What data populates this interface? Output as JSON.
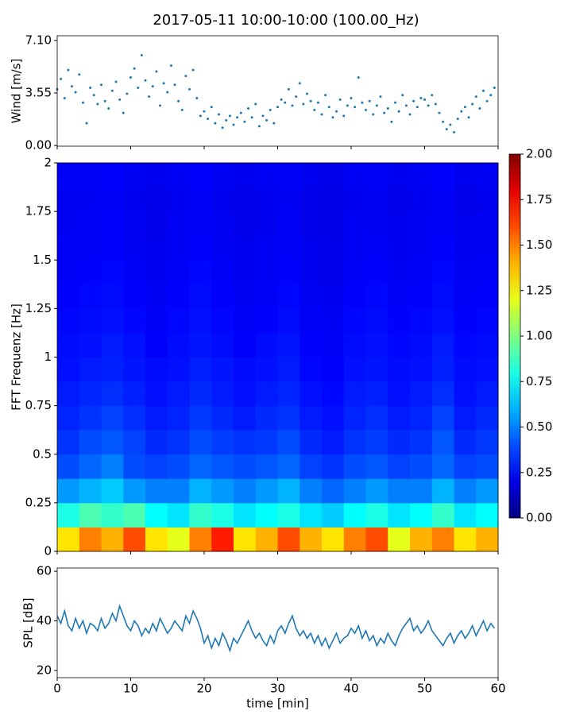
{
  "chart_data": [
    {
      "type": "scatter",
      "title": "2017-05-11 10:00-10:00 (100.00_Hz)",
      "ylabel": "Wind [m/s]",
      "color": "#1f77b4",
      "x": [
        0,
        0.5,
        1,
        1.5,
        2,
        2.5,
        3,
        3.5,
        4,
        4.5,
        5,
        5.5,
        6,
        6.5,
        7,
        7.5,
        8,
        8.5,
        9,
        9.5,
        10,
        10.5,
        11,
        11.5,
        12,
        12.5,
        13,
        13.5,
        14,
        14.5,
        15,
        15.5,
        16,
        16.5,
        17,
        17.5,
        18,
        18.5,
        19,
        19.5,
        20,
        20.5,
        21,
        21.5,
        22,
        22.5,
        23,
        23.5,
        24,
        24.5,
        25,
        25.5,
        26,
        26.5,
        27,
        27.5,
        28,
        28.5,
        29,
        29.5,
        30,
        30.5,
        31,
        31.5,
        32,
        32.5,
        33,
        33.5,
        34,
        34.5,
        35,
        35.5,
        36,
        36.5,
        37,
        37.5,
        38,
        38.5,
        39,
        39.5,
        40,
        40.5,
        41,
        41.5,
        42,
        42.5,
        43,
        43.5,
        44,
        44.5,
        45,
        45.5,
        46,
        46.5,
        47,
        47.5,
        48,
        48.5,
        49,
        49.5,
        50,
        50.5,
        51,
        51.5,
        52,
        52.5,
        53,
        53.5,
        54,
        54.5,
        55,
        55.5,
        56,
        56.5,
        57,
        57.5,
        58,
        58.5,
        59,
        59.5
      ],
      "values": [
        3.8,
        4.5,
        3.2,
        5.1,
        4.0,
        3.6,
        4.8,
        2.9,
        1.5,
        3.9,
        3.4,
        2.8,
        4.1,
        3.0,
        2.5,
        3.7,
        4.3,
        3.1,
        2.2,
        3.5,
        4.6,
        5.2,
        3.9,
        6.1,
        4.4,
        3.3,
        4.0,
        5.0,
        2.7,
        4.2,
        3.6,
        5.4,
        4.1,
        3.0,
        2.4,
        4.7,
        3.8,
        5.1,
        3.2,
        2.0,
        2.3,
        1.8,
        2.6,
        1.5,
        2.1,
        1.2,
        1.7,
        2.0,
        1.4,
        1.9,
        2.2,
        1.6,
        2.5,
        1.9,
        2.8,
        1.3,
        2.0,
        1.7,
        2.4,
        1.5,
        2.6,
        3.1,
        2.9,
        3.8,
        2.7,
        3.3,
        4.2,
        2.8,
        3.5,
        3.0,
        2.4,
        2.9,
        2.1,
        3.4,
        2.6,
        1.9,
        2.3,
        3.1,
        2.0,
        2.7,
        3.2,
        2.6,
        4.6,
        2.9,
        2.4,
        3.0,
        2.1,
        2.7,
        3.3,
        2.2,
        2.5,
        1.6,
        2.9,
        2.3,
        3.4,
        2.7,
        2.1,
        3.0,
        2.6,
        3.2,
        3.1,
        2.7,
        3.4,
        2.8,
        2.2,
        1.6,
        1.1,
        1.4,
        0.9,
        1.8,
        2.3,
        2.6,
        1.9,
        2.8,
        3.3,
        2.5,
        3.7,
        3.0,
        3.4,
        3.9
      ],
      "xlim": [
        0,
        60
      ],
      "xticks": [
        0,
        10,
        20,
        30,
        40,
        50,
        60
      ],
      "show_xtick_labels": false,
      "ylim": [
        -0.05,
        7.42
      ],
      "yticks": [
        {
          "value": 0,
          "label": "0.00"
        },
        {
          "value": 3.55,
          "label": "3.55"
        },
        {
          "value": 7.1,
          "label": "7.10"
        }
      ]
    },
    {
      "type": "heatmap",
      "ylabel": "FFT Frequenz [Hz]",
      "colormap": "jet",
      "xlim": [
        0,
        60
      ],
      "xticks": [
        0,
        10,
        20,
        30,
        40,
        50,
        60
      ],
      "show_xtick_labels": false,
      "ylim": [
        0,
        2
      ],
      "yticks": [
        0,
        0.25,
        0.5,
        0.75,
        1,
        1.25,
        1.5,
        1.75,
        2
      ],
      "z": [
        [
          1.3,
          1.5,
          1.4,
          1.6,
          1.3,
          1.2,
          1.5,
          1.7,
          1.3,
          1.4,
          1.6,
          1.4,
          1.3,
          1.5,
          1.6,
          1.2,
          1.4,
          1.5,
          1.3,
          1.4
        ],
        [
          0.8,
          0.9,
          0.85,
          0.9,
          0.75,
          0.7,
          0.85,
          0.8,
          0.7,
          0.75,
          0.8,
          0.7,
          0.65,
          0.75,
          0.8,
          0.7,
          0.75,
          0.85,
          0.7,
          0.75
        ],
        [
          0.55,
          0.6,
          0.65,
          0.55,
          0.5,
          0.5,
          0.6,
          0.55,
          0.5,
          0.55,
          0.6,
          0.5,
          0.45,
          0.5,
          0.55,
          0.5,
          0.5,
          0.6,
          0.5,
          0.55
        ],
        [
          0.4,
          0.45,
          0.5,
          0.4,
          0.38,
          0.4,
          0.45,
          0.42,
          0.4,
          0.42,
          0.45,
          0.38,
          0.35,
          0.4,
          0.42,
          0.38,
          0.4,
          0.45,
          0.38,
          0.4
        ],
        [
          0.35,
          0.4,
          0.42,
          0.38,
          0.33,
          0.35,
          0.4,
          0.37,
          0.35,
          0.36,
          0.4,
          0.33,
          0.3,
          0.35,
          0.37,
          0.33,
          0.35,
          0.42,
          0.33,
          0.36
        ],
        [
          0.32,
          0.35,
          0.38,
          0.34,
          0.3,
          0.32,
          0.36,
          0.33,
          0.3,
          0.33,
          0.35,
          0.3,
          0.28,
          0.32,
          0.34,
          0.3,
          0.32,
          0.38,
          0.3,
          0.33
        ],
        [
          0.3,
          0.32,
          0.34,
          0.31,
          0.28,
          0.3,
          0.33,
          0.3,
          0.28,
          0.3,
          0.32,
          0.28,
          0.26,
          0.3,
          0.31,
          0.28,
          0.3,
          0.34,
          0.28,
          0.3
        ],
        [
          0.28,
          0.3,
          0.31,
          0.29,
          0.27,
          0.28,
          0.31,
          0.29,
          0.27,
          0.28,
          0.3,
          0.26,
          0.25,
          0.28,
          0.29,
          0.27,
          0.28,
          0.31,
          0.27,
          0.28
        ],
        [
          0.27,
          0.28,
          0.3,
          0.28,
          0.25,
          0.27,
          0.29,
          0.27,
          0.25,
          0.27,
          0.29,
          0.25,
          0.24,
          0.27,
          0.28,
          0.26,
          0.27,
          0.3,
          0.26,
          0.27
        ],
        [
          0.26,
          0.27,
          0.28,
          0.26,
          0.24,
          0.26,
          0.28,
          0.26,
          0.24,
          0.25,
          0.27,
          0.24,
          0.23,
          0.26,
          0.27,
          0.25,
          0.26,
          0.28,
          0.25,
          0.26
        ],
        [
          0.25,
          0.26,
          0.27,
          0.25,
          0.23,
          0.25,
          0.27,
          0.25,
          0.23,
          0.24,
          0.26,
          0.23,
          0.22,
          0.25,
          0.26,
          0.24,
          0.25,
          0.27,
          0.24,
          0.25
        ],
        [
          0.24,
          0.25,
          0.26,
          0.24,
          0.22,
          0.24,
          0.26,
          0.24,
          0.22,
          0.23,
          0.25,
          0.22,
          0.21,
          0.24,
          0.25,
          0.23,
          0.24,
          0.26,
          0.23,
          0.24
        ],
        [
          0.24,
          0.24,
          0.25,
          0.23,
          0.22,
          0.23,
          0.25,
          0.23,
          0.22,
          0.23,
          0.24,
          0.22,
          0.21,
          0.23,
          0.24,
          0.22,
          0.23,
          0.25,
          0.22,
          0.23
        ],
        [
          0.23,
          0.24,
          0.25,
          0.23,
          0.21,
          0.23,
          0.24,
          0.23,
          0.21,
          0.22,
          0.24,
          0.21,
          0.2,
          0.23,
          0.23,
          0.22,
          0.23,
          0.24,
          0.22,
          0.23
        ],
        [
          0.23,
          0.23,
          0.24,
          0.22,
          0.21,
          0.22,
          0.24,
          0.22,
          0.21,
          0.22,
          0.23,
          0.21,
          0.2,
          0.22,
          0.23,
          0.21,
          0.22,
          0.24,
          0.21,
          0.22
        ],
        [
          0.24,
          0.24,
          0.25,
          0.23,
          0.22,
          0.23,
          0.25,
          0.23,
          0.22,
          0.23,
          0.24,
          0.22,
          0.21,
          0.23,
          0.24,
          0.22,
          0.23,
          0.25,
          0.22,
          0.23
        ]
      ],
      "colorbar": {
        "lim": [
          0,
          2
        ],
        "ticks": [
          {
            "value": 0,
            "label": "0.00"
          },
          {
            "value": 0.25,
            "label": "0.25"
          },
          {
            "value": 0.5,
            "label": "0.50"
          },
          {
            "value": 0.75,
            "label": "0.75"
          },
          {
            "value": 1,
            "label": "1.00"
          },
          {
            "value": 1.25,
            "label": "1.25"
          },
          {
            "value": 1.5,
            "label": "1.50"
          },
          {
            "value": 1.75,
            "label": "1.75"
          },
          {
            "value": 2,
            "label": "2.00"
          }
        ]
      }
    },
    {
      "type": "line",
      "ylabel": "SPL [dB]",
      "xlabel": "time [min]",
      "color": "#1f77b4",
      "x": [
        0,
        0.5,
        1,
        1.5,
        2,
        2.5,
        3,
        3.5,
        4,
        4.5,
        5,
        5.5,
        6,
        6.5,
        7,
        7.5,
        8,
        8.5,
        9,
        9.5,
        10,
        10.5,
        11,
        11.5,
        12,
        12.5,
        13,
        13.5,
        14,
        14.5,
        15,
        15.5,
        16,
        16.5,
        17,
        17.5,
        18,
        18.5,
        19,
        19.5,
        20,
        20.5,
        21,
        21.5,
        22,
        22.5,
        23,
        23.5,
        24,
        24.5,
        25,
        25.5,
        26,
        26.5,
        27,
        27.5,
        28,
        28.5,
        29,
        29.5,
        30,
        30.5,
        31,
        31.5,
        32,
        32.5,
        33,
        33.5,
        34,
        34.5,
        35,
        35.5,
        36,
        36.5,
        37,
        37.5,
        38,
        38.5,
        39,
        39.5,
        40,
        40.5,
        41,
        41.5,
        42,
        42.5,
        43,
        43.5,
        44,
        44.5,
        45,
        45.5,
        46,
        46.5,
        47,
        47.5,
        48,
        48.5,
        49,
        49.5,
        50,
        50.5,
        51,
        51.5,
        52,
        52.5,
        53,
        53.5,
        54,
        54.5,
        55,
        55.5,
        56,
        56.5,
        57,
        57.5,
        58,
        58.5,
        59,
        59.5
      ],
      "values": [
        42,
        39,
        44,
        38,
        36,
        41,
        37,
        40,
        35,
        39,
        38,
        36,
        41,
        37,
        39,
        43,
        40,
        46,
        42,
        38,
        36,
        40,
        38,
        34,
        37,
        35,
        39,
        36,
        41,
        38,
        35,
        37,
        40,
        38,
        36,
        42,
        39,
        44,
        41,
        37,
        31,
        34,
        29,
        33,
        30,
        35,
        32,
        28,
        33,
        31,
        34,
        37,
        40,
        36,
        33,
        35,
        32,
        30,
        34,
        31,
        36,
        38,
        35,
        39,
        42,
        37,
        34,
        36,
        33,
        35,
        31,
        34,
        30,
        33,
        29,
        32,
        35,
        31,
        33,
        34,
        37,
        35,
        38,
        33,
        36,
        32,
        34,
        30,
        33,
        31,
        35,
        32,
        30,
        34,
        37,
        39,
        41,
        36,
        38,
        35,
        37,
        40,
        36,
        34,
        32,
        30,
        33,
        35,
        31,
        34,
        36,
        33,
        35,
        38,
        34,
        37,
        40,
        36,
        39,
        37
      ],
      "xlim": [
        0,
        60
      ],
      "xticks": [
        0,
        10,
        20,
        30,
        40,
        50,
        60
      ],
      "show_xtick_labels": true,
      "ylim": [
        17.1,
        61.3
      ],
      "yticks": [
        20,
        40,
        60
      ]
    }
  ]
}
